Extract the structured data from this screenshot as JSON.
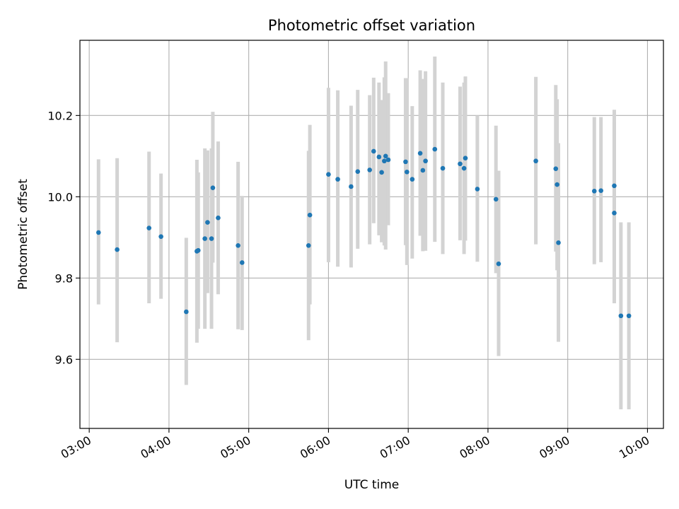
{
  "chart_data": {
    "type": "scatter",
    "title": "Photometric offset variation",
    "xlabel": "UTC time",
    "ylabel": "Photometric offset",
    "x_unit": "UTC time (HH:MM)",
    "xlim": [
      "02:53",
      "10:12"
    ],
    "ylim": [
      9.43,
      10.385
    ],
    "x_ticks": [
      "03:00",
      "04:00",
      "05:00",
      "06:00",
      "07:00",
      "08:00",
      "09:00",
      "10:00"
    ],
    "y_ticks": [
      9.6,
      9.8,
      10.0,
      10.2
    ],
    "y_tick_labels": [
      "9.6",
      "9.8",
      "10.0",
      "10.2"
    ],
    "grid": true,
    "x_tick_rotation": "30deg",
    "colors": {
      "point": "#1f77b4",
      "errorbar": "#d3d3d3",
      "grid": "#b0b0b0",
      "axes": "#000000"
    },
    "series": [
      {
        "x": [
          "03:07",
          "03:21",
          "03:45",
          "03:54",
          "04:13",
          "04:21",
          "04:22",
          "04:27",
          "04:29",
          "04:32",
          "04:33",
          "04:37",
          "04:52",
          "04:55",
          "05:45",
          "05:46",
          "06:00",
          "06:07",
          "06:17",
          "06:22",
          "06:31",
          "06:34",
          "06:38",
          "06:40",
          "06:42",
          "06:43",
          "06:45",
          "06:58",
          "06:59",
          "07:03",
          "07:09",
          "07:11",
          "07:13",
          "07:20",
          "07:26",
          "07:39",
          "07:42",
          "07:43",
          "07:52",
          "08:06",
          "08:08",
          "08:36",
          "08:51",
          "08:52",
          "08:53",
          "09:20",
          "09:25",
          "09:35",
          "09:35",
          "09:40",
          "09:46"
        ],
        "y": [
          9.912,
          9.87,
          9.923,
          9.902,
          9.717,
          9.866,
          9.868,
          9.897,
          9.937,
          9.897,
          10.022,
          9.948,
          9.88,
          9.838,
          9.88,
          9.955,
          10.055,
          10.043,
          10.025,
          10.062,
          10.066,
          10.112,
          10.098,
          10.06,
          10.088,
          10.1,
          10.091,
          10.086,
          10.061,
          10.043,
          10.107,
          10.065,
          10.088,
          10.117,
          10.07,
          10.081,
          10.07,
          10.095,
          10.019,
          9.994,
          9.835,
          10.088,
          10.069,
          10.03,
          9.887,
          10.014,
          10.015,
          10.027,
          9.96,
          9.707,
          9.707
        ],
        "err_low": [
          9.735,
          9.642,
          9.738,
          9.749,
          9.537,
          9.641,
          9.675,
          9.675,
          9.763,
          9.675,
          9.838,
          9.76,
          9.674,
          9.672,
          9.647,
          9.735,
          9.839,
          9.828,
          9.826,
          9.872,
          9.883,
          9.935,
          9.905,
          9.888,
          9.88,
          9.87,
          9.93,
          9.881,
          9.832,
          9.848,
          9.904,
          9.866,
          9.867,
          9.889,
          9.859,
          9.893,
          9.859,
          9.892,
          9.84,
          9.812,
          9.608,
          9.883,
          9.865,
          9.819,
          9.643,
          9.834,
          9.839,
          9.843,
          9.738,
          9.477,
          9.477
        ],
        "err_high": [
          10.092,
          10.095,
          10.111,
          10.057,
          9.899,
          10.091,
          10.06,
          10.119,
          10.114,
          10.119,
          10.209,
          10.136,
          10.086,
          10.002,
          10.113,
          10.177,
          10.268,
          10.262,
          10.224,
          10.263,
          10.25,
          10.293,
          10.281,
          10.238,
          10.294,
          10.333,
          10.255,
          10.292,
          10.292,
          10.223,
          10.311,
          10.29,
          10.309,
          10.345,
          10.281,
          10.271,
          10.281,
          10.296,
          10.2,
          10.175,
          10.064,
          10.295,
          10.275,
          10.24,
          10.132,
          10.196,
          10.196,
          10.214,
          10.186,
          9.937,
          9.937
        ]
      }
    ]
  }
}
